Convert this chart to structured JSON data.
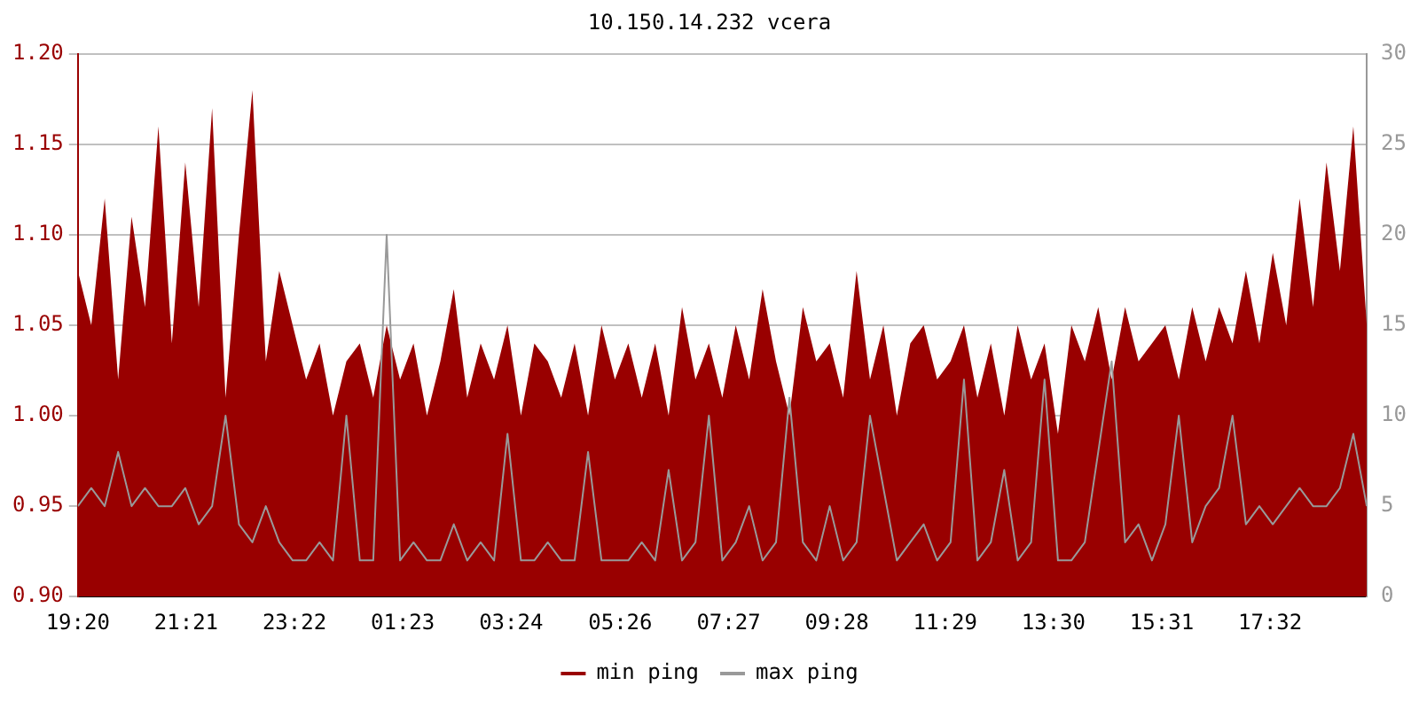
{
  "chart_data": {
    "type": "area",
    "title": "10.150.14.232 vcera",
    "x": [
      "--01-01T19:20",
      "--01-01T19:35",
      "--01-01T19:50",
      "--01-01T20:05",
      "--01-01T20:20",
      "--01-01T20:35",
      "--01-01T20:50",
      "--01-01T21:05",
      "--01-01T21:20",
      "--01-01T21:35",
      "--01-01T21:50",
      "--01-01T22:05",
      "--01-01T22:20",
      "--01-01T22:35",
      "--01-01T22:50",
      "--01-01T23:05",
      "--01-01T23:20",
      "--01-01T23:35",
      "--01-01T23:50",
      "--01-02T00:05",
      "--01-02T00:20",
      "--01-02T00:35",
      "--01-02T00:50",
      "--01-02T01:05",
      "--01-02T01:20",
      "--01-02T01:35",
      "--01-02T01:50",
      "--01-02T02:05",
      "--01-02T02:20",
      "--01-02T02:35",
      "--01-02T02:50",
      "--01-02T03:05",
      "--01-02T03:20",
      "--01-02T03:35",
      "--01-02T03:50",
      "--01-02T04:05",
      "--01-02T04:20",
      "--01-02T04:35",
      "--01-02T04:50",
      "--01-02T05:05",
      "--01-02T05:20",
      "--01-02T05:35",
      "--01-02T05:50",
      "--01-02T06:05",
      "--01-02T06:20",
      "--01-02T06:35",
      "--01-02T06:50",
      "--01-02T07:05",
      "--01-02T07:20",
      "--01-02T07:35",
      "--01-02T07:50",
      "--01-02T08:05",
      "--01-02T08:20",
      "--01-02T08:35",
      "--01-02T08:50",
      "--01-02T09:05",
      "--01-02T09:20",
      "--01-02T09:35",
      "--01-02T09:50",
      "--01-02T10:05",
      "--01-02T10:20",
      "--01-02T10:35",
      "--01-02T10:50",
      "--01-02T11:05",
      "--01-02T11:20",
      "--01-02T11:35",
      "--01-02T11:50",
      "--01-02T12:05",
      "--01-02T12:20",
      "--01-02T12:35",
      "--01-02T12:50",
      "--01-02T13:05",
      "--01-02T13:20",
      "--01-02T13:35",
      "--01-02T13:50",
      "--01-02T14:05",
      "--01-02T14:20",
      "--01-02T14:35",
      "--01-02T14:50",
      "--01-02T15:05",
      "--01-02T15:20",
      "--01-02T15:35",
      "--01-02T15:50",
      "--01-02T16:05",
      "--01-02T16:20",
      "--01-02T16:35",
      "--01-02T16:50",
      "--01-02T17:05",
      "--01-02T17:20",
      "--01-02T17:35",
      "--01-02T17:50",
      "--01-02T18:05",
      "--01-02T18:20",
      "--01-02T18:35",
      "--01-02T18:50",
      "--01-02T19:05",
      "--01-02T19:20"
    ],
    "series": [
      {
        "name": "min ping",
        "color": "#990000",
        "values": [
          1.08,
          1.05,
          1.12,
          1.02,
          1.11,
          1.06,
          1.16,
          1.04,
          1.14,
          1.06,
          1.17,
          1.01,
          1.1,
          1.18,
          1.03,
          1.08,
          1.05,
          1.02,
          1.04,
          1.0,
          1.03,
          1.04,
          1.01,
          1.05,
          1.02,
          1.04,
          1.0,
          1.03,
          1.07,
          1.01,
          1.04,
          1.02,
          1.05,
          1.0,
          1.04,
          1.03,
          1.01,
          1.04,
          1.0,
          1.05,
          1.02,
          1.04,
          1.01,
          1.04,
          1.0,
          1.06,
          1.02,
          1.04,
          1.01,
          1.05,
          1.02,
          1.07,
          1.03,
          1.0,
          1.06,
          1.03,
          1.04,
          1.01,
          1.08,
          1.02,
          1.05,
          1.0,
          1.04,
          1.05,
          1.02,
          1.03,
          1.05,
          1.01,
          1.04,
          1.0,
          1.05,
          1.02,
          1.04,
          0.99,
          1.05,
          1.03,
          1.06,
          1.02,
          1.06,
          1.03,
          1.04,
          1.05,
          1.02,
          1.06,
          1.03,
          1.06,
          1.04,
          1.08,
          1.04,
          1.09,
          1.05,
          1.12,
          1.06,
          1.14,
          1.08,
          1.16,
          1.05
        ]
      },
      {
        "name": "max ping",
        "type": "line",
        "axis": "y2",
        "color": "#999999",
        "values": [
          5,
          6,
          5,
          8,
          5,
          6,
          5,
          5,
          6,
          4,
          5,
          10,
          4,
          3,
          5,
          3,
          2,
          2,
          3,
          2,
          10,
          2,
          2,
          20,
          2,
          3,
          2,
          2,
          4,
          2,
          3,
          2,
          9,
          2,
          2,
          3,
          2,
          2,
          8,
          2,
          2,
          2,
          3,
          2,
          7,
          2,
          3,
          10,
          2,
          3,
          5,
          2,
          3,
          11,
          3,
          2,
          5,
          2,
          3,
          10,
          6,
          2,
          3,
          4,
          2,
          3,
          12,
          2,
          3,
          7,
          2,
          3,
          12,
          2,
          2,
          3,
          8,
          13,
          3,
          4,
          2,
          4,
          10,
          3,
          5,
          6,
          10,
          4,
          5,
          4,
          5,
          6,
          5,
          5,
          6,
          9,
          5
        ]
      }
    ],
    "xlim": [
      "--01-01T19:20",
      "--01-02T19:20"
    ],
    "xticks": [
      {
        "value": "--01-01T19:20",
        "label": "19:20"
      },
      {
        "value": "--01-01T21:21",
        "label": "21:21"
      },
      {
        "value": "--01-01T23:22",
        "label": "23:22"
      },
      {
        "value": "--01-02T01:23",
        "label": "01:23"
      },
      {
        "value": "--01-02T03:24",
        "label": "03:24"
      },
      {
        "value": "--01-02T05:26",
        "label": "05:26"
      },
      {
        "value": "--01-02T07:27",
        "label": "07:27"
      },
      {
        "value": "--01-02T09:28",
        "label": "09:28"
      },
      {
        "value": "--01-02T11:29",
        "label": "11:29"
      },
      {
        "value": "--01-02T13:30",
        "label": "13:30"
      },
      {
        "value": "--01-02T15:31",
        "label": "15:31"
      },
      {
        "value": "--01-02T17:32",
        "label": "17:32"
      }
    ],
    "ylim": [
      0.9,
      1.2
    ],
    "yticks": [
      {
        "value": 0.9,
        "label": "0.90"
      },
      {
        "value": 0.95,
        "label": "0.95"
      },
      {
        "value": 1.0,
        "label": "1.00"
      },
      {
        "value": 1.05,
        "label": "1.05"
      },
      {
        "value": 1.1,
        "label": "1.10"
      },
      {
        "value": 1.15,
        "label": "1.15"
      },
      {
        "value": 1.2,
        "label": "1.20"
      }
    ],
    "y2lim": [
      0,
      30
    ],
    "y2ticks": [
      0,
      5,
      10,
      15,
      20,
      25,
      30
    ],
    "grid": "y",
    "legend": "bottom",
    "marker": "none",
    "line_style": "solid"
  }
}
